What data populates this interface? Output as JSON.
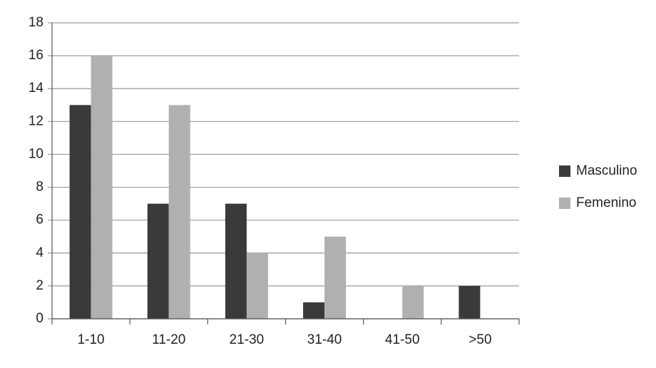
{
  "chart_data": {
    "type": "bar",
    "categories": [
      "1-10",
      "11-20",
      "21-30",
      "31-40",
      "41-50",
      ">50"
    ],
    "series": [
      {
        "name": "Masculino",
        "color": "#3a3a3a",
        "values": [
          13,
          7,
          7,
          1,
          0,
          2
        ]
      },
      {
        "name": "Femenino",
        "color": "#b0b0b0",
        "values": [
          16,
          13,
          4,
          5,
          2,
          0
        ]
      }
    ],
    "ylim": [
      0,
      18
    ],
    "yticks": [
      0,
      2,
      4,
      6,
      8,
      10,
      12,
      14,
      16,
      18
    ],
    "grid": true,
    "legend": "right"
  }
}
